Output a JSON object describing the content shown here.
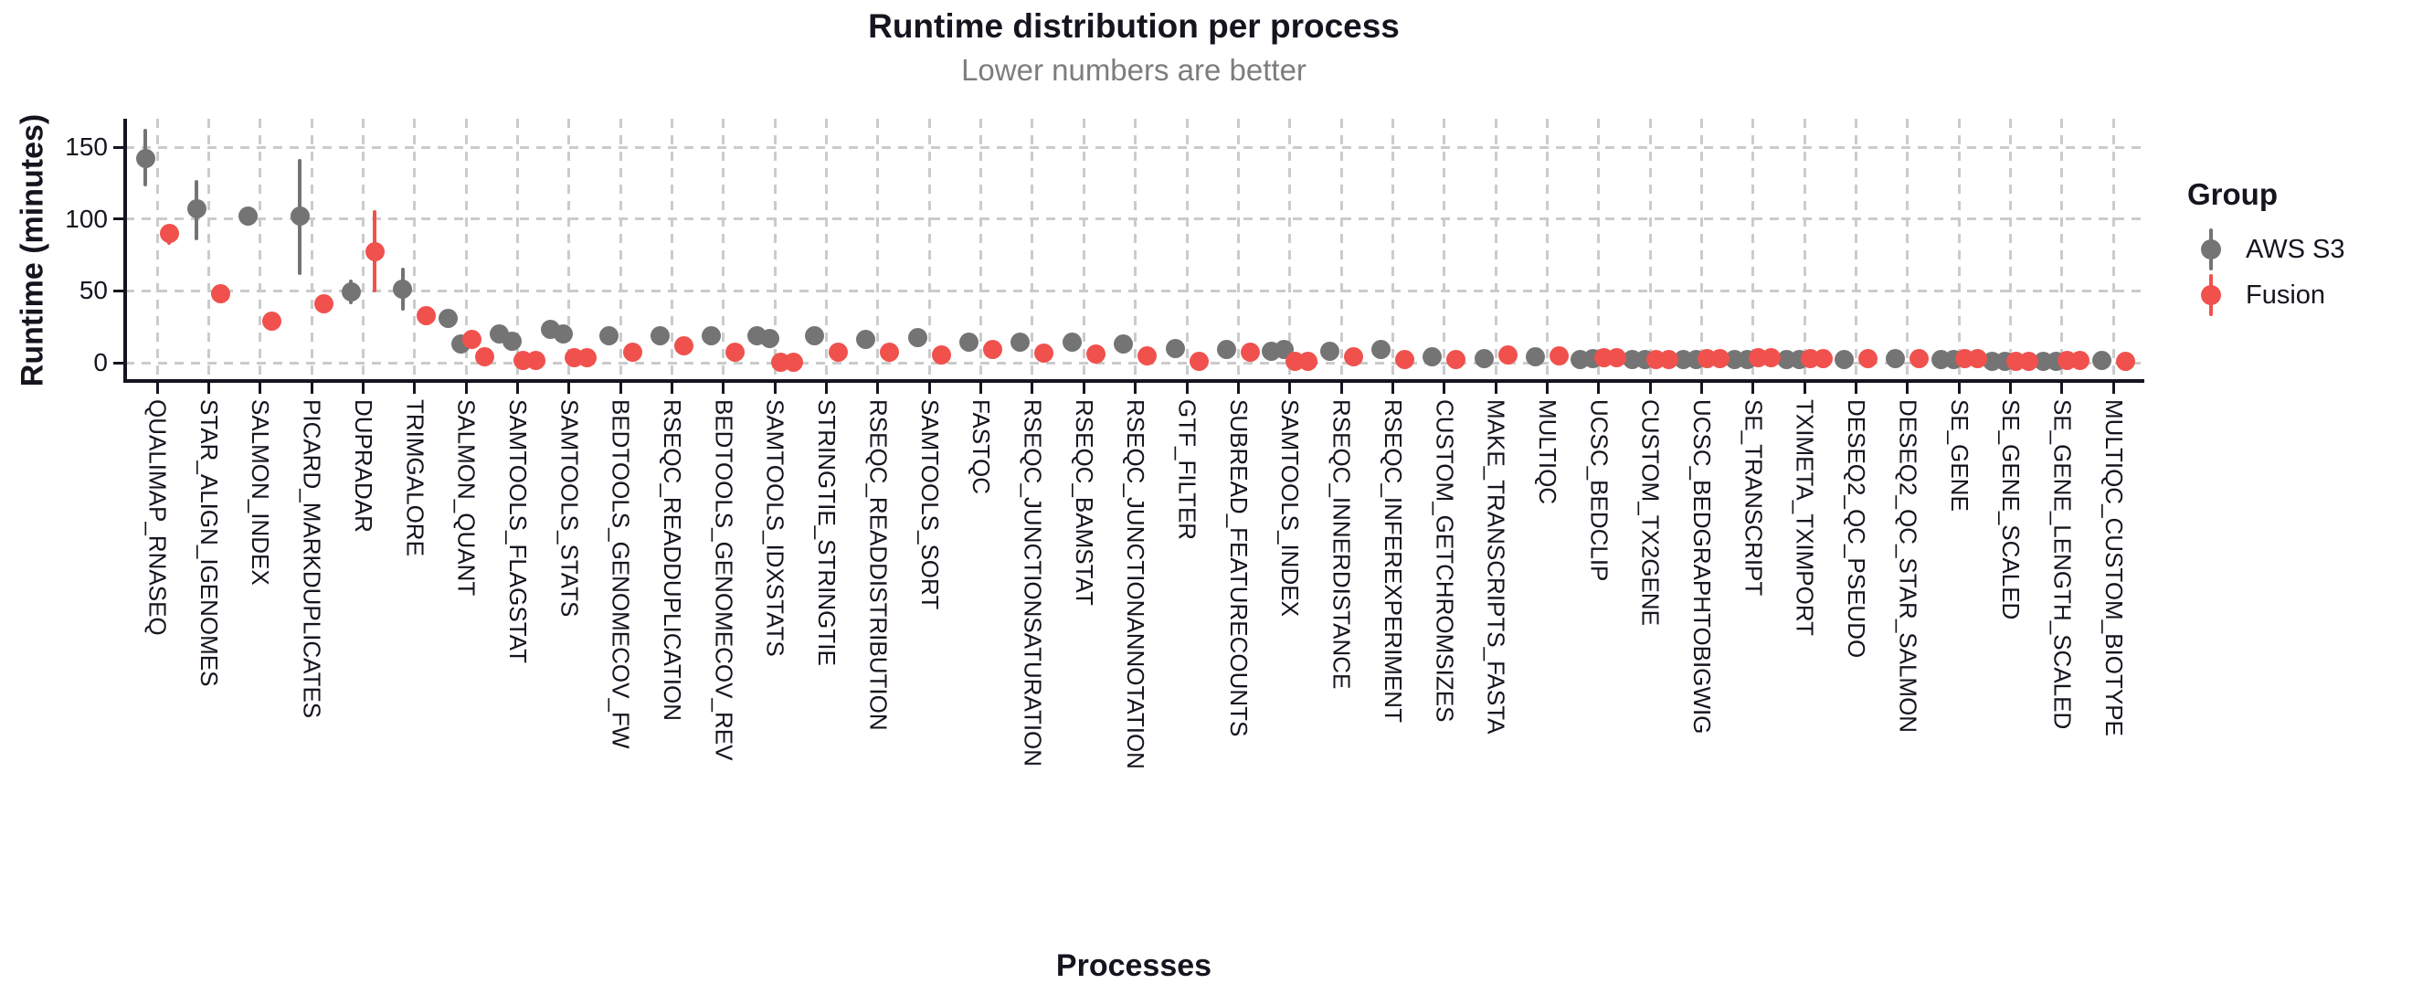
{
  "chart_data": {
    "type": "scatter",
    "title": "Runtime distribution per process",
    "subtitle": "Lower numbers are better",
    "xlabel": "Processes",
    "ylabel": "Runtime (minutes)",
    "yticks": [
      0,
      50,
      100,
      150
    ],
    "ylim": [
      -8,
      170
    ],
    "grid": "dashed",
    "legend_title": "Group",
    "legend_position": "right",
    "axis_color": "#15151f",
    "grid_color": "#cbcbcb",
    "series": [
      {
        "name": "AWS S3",
        "key": "aws",
        "color": "#747474"
      },
      {
        "name": "Fusion",
        "key": "fusion",
        "color": "#f0514d"
      }
    ],
    "processes": [
      {
        "name": "QUALIMAP_RNASEQ",
        "aws": [
          142
        ],
        "aws_err": [
          123,
          163
        ],
        "fusion": [
          90
        ],
        "fusion_err": [
          82,
          96
        ]
      },
      {
        "name": "STAR_ALIGN_IGENOMES",
        "aws": [
          107
        ],
        "aws_err": [
          85,
          127
        ],
        "fusion": [
          48
        ]
      },
      {
        "name": "SALMON_INDEX",
        "aws": [
          102
        ],
        "aws_err": [
          96,
          108
        ],
        "fusion": [
          29
        ]
      },
      {
        "name": "PICARD_MARKDUPLICATES",
        "aws": [
          102
        ],
        "aws_err": [
          61,
          142
        ],
        "fusion": [
          41
        ]
      },
      {
        "name": "DUPRADAR",
        "aws": [
          49
        ],
        "aws_err": [
          41,
          58
        ],
        "fusion": [
          77
        ],
        "fusion_err": [
          49,
          106
        ]
      },
      {
        "name": "TRIMGALORE",
        "aws": [
          51
        ],
        "aws_err": [
          36,
          66
        ],
        "fusion": [
          33
        ]
      },
      {
        "name": "SALMON_QUANT",
        "aws": [
          31,
          13
        ],
        "fusion": [
          16,
          4
        ]
      },
      {
        "name": "SAMTOOLS_FLAGSTAT",
        "aws": [
          20,
          15
        ],
        "fusion": [
          1.5,
          1.5
        ]
      },
      {
        "name": "SAMTOOLS_STATS",
        "aws": [
          23,
          20
        ],
        "fusion": [
          3.5,
          3.5
        ]
      },
      {
        "name": "BEDTOOLS_GENOMECOV_FW",
        "aws": [
          19
        ],
        "fusion": [
          7
        ]
      },
      {
        "name": "RSEQC_READDUPLICATION",
        "aws": [
          19
        ],
        "fusion": [
          12
        ]
      },
      {
        "name": "BEDTOOLS_GENOMECOV_REV",
        "aws": [
          18.5
        ],
        "fusion": [
          7.5
        ]
      },
      {
        "name": "SAMTOOLS_IDXSTATS",
        "aws": [
          18.5,
          17
        ],
        "fusion": [
          0.4,
          0.4
        ]
      },
      {
        "name": "STRINGTIE_STRINGTIE",
        "aws": [
          18.5
        ],
        "fusion": [
          7.5
        ]
      },
      {
        "name": "RSEQC_READDISTRIBUTION",
        "aws": [
          16
        ],
        "fusion": [
          7
        ]
      },
      {
        "name": "SAMTOOLS_SORT",
        "aws": [
          17.5
        ],
        "aws_err": [
          14,
          21
        ],
        "fusion": [
          5.5
        ]
      },
      {
        "name": "FASTQC",
        "aws": [
          14.5
        ],
        "fusion": [
          9
        ]
      },
      {
        "name": "RSEQC_JUNCTIONSATURATION",
        "aws": [
          14
        ],
        "fusion": [
          6.5
        ]
      },
      {
        "name": "RSEQC_BAMSTAT",
        "aws": [
          14
        ],
        "fusion": [
          6
        ]
      },
      {
        "name": "RSEQC_JUNCTIONANNOTATION",
        "aws": [
          13
        ],
        "fusion": [
          5
        ]
      },
      {
        "name": "GTF_FILTER",
        "aws": [
          10
        ],
        "fusion": [
          1
        ]
      },
      {
        "name": "SUBREAD_FEATURECOUNTS",
        "aws": [
          9
        ],
        "fusion": [
          7
        ]
      },
      {
        "name": "SAMTOOLS_INDEX",
        "aws": [
          8,
          9
        ],
        "fusion": [
          1,
          1
        ]
      },
      {
        "name": "RSEQC_INNERDISTANCE",
        "aws": [
          8
        ],
        "fusion": [
          4
        ]
      },
      {
        "name": "RSEQC_INFEREXPERIMENT",
        "aws": [
          9
        ],
        "fusion": [
          2
        ]
      },
      {
        "name": "CUSTOM_GETCHROMSIZES",
        "aws": [
          4
        ],
        "fusion": [
          2
        ]
      },
      {
        "name": "MAKE_TRANSCRIPTS_FASTA",
        "aws": [
          3
        ],
        "fusion": [
          5.5
        ]
      },
      {
        "name": "MULTIQC",
        "aws": [
          4
        ],
        "fusion": [
          4.5
        ]
      },
      {
        "name": "UCSC_BEDCLIP",
        "aws": [
          2,
          3
        ],
        "fusion": [
          3.3,
          3.3
        ]
      },
      {
        "name": "CUSTOM_TX2GENE",
        "aws": [
          2,
          2
        ],
        "fusion": [
          2,
          2
        ]
      },
      {
        "name": "UCSC_BEDGRAPHTOBIGWIG",
        "aws": [
          2,
          2
        ],
        "fusion": [
          2.7,
          2.7
        ]
      },
      {
        "name": "SE_TRANSCRIPT",
        "aws": [
          2,
          2
        ],
        "fusion": [
          3.3,
          3.3
        ]
      },
      {
        "name": "TXIMETA_TXIMPORT",
        "aws": [
          2,
          2
        ],
        "fusion": [
          2.7,
          2.7
        ]
      },
      {
        "name": "DESEQ2_QC_PSEUDO",
        "aws": [
          2
        ],
        "fusion": [
          2.7
        ]
      },
      {
        "name": "DESEQ2_QC_STAR_SALMON",
        "aws": [
          2.7
        ],
        "fusion": [
          2.7
        ]
      },
      {
        "name": "SE_GENE",
        "aws": [
          2,
          2
        ],
        "fusion": [
          2.7,
          2.7
        ]
      },
      {
        "name": "SE_GENE_SCALED",
        "aws": [
          0.7,
          0.7
        ],
        "fusion": [
          1,
          1
        ]
      },
      {
        "name": "SE_GENE_LENGTH_SCALED",
        "aws": [
          1,
          1
        ],
        "fusion": [
          1.7,
          1.7
        ]
      },
      {
        "name": "MULTIQC_CUSTOM_BIOTYPE",
        "aws": [
          1.7
        ],
        "fusion": [
          1
        ]
      }
    ]
  }
}
